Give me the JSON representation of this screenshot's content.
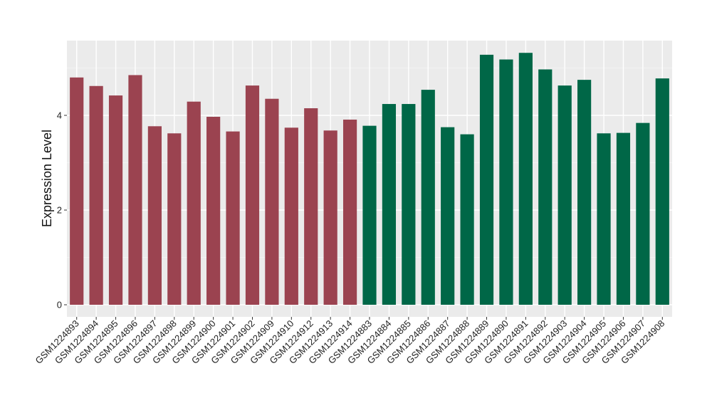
{
  "chart_data": {
    "type": "bar",
    "title": "",
    "xlabel": "",
    "ylabel": "Expression Level",
    "ylim": [
      0,
      5.6
    ],
    "yticks": [
      0,
      2,
      4
    ],
    "grid": true,
    "legend": "none",
    "colors": {
      "group_a": "#9b4350",
      "group_b": "#006747",
      "panel_background": "#ebebeb",
      "grid_major": "#ffffff",
      "grid_minor": "#f5f5f5"
    },
    "categories": [
      "GSM1224893",
      "GSM1224894",
      "GSM1224895",
      "GSM1224896",
      "GSM1224897",
      "GSM1224898",
      "GSM1224899",
      "GSM1224900",
      "GSM1224901",
      "GSM1224902",
      "GSM1224909",
      "GSM1224910",
      "GSM1224912",
      "GSM1224913",
      "GSM1224914",
      "GSM1224883",
      "GSM1224884",
      "GSM1224885",
      "GSM1224886",
      "GSM1224887",
      "GSM1224888",
      "GSM1224889",
      "GSM1224890",
      "GSM1224891",
      "GSM1224892",
      "GSM1224903",
      "GSM1224904",
      "GSM1224905",
      "GSM1224906",
      "GSM1224907",
      "GSM1224908"
    ],
    "values": [
      4.8,
      4.62,
      4.42,
      4.85,
      3.77,
      3.62,
      4.29,
      3.97,
      3.66,
      4.63,
      4.35,
      3.74,
      4.15,
      3.68,
      3.91,
      3.78,
      4.24,
      4.24,
      4.54,
      3.75,
      3.6,
      5.28,
      5.18,
      5.32,
      4.97,
      4.63,
      4.75,
      3.62,
      3.63,
      3.84,
      4.78
    ],
    "groups": [
      "a",
      "a",
      "a",
      "a",
      "a",
      "a",
      "a",
      "a",
      "a",
      "a",
      "a",
      "a",
      "a",
      "a",
      "a",
      "b",
      "b",
      "b",
      "b",
      "b",
      "b",
      "b",
      "b",
      "b",
      "b",
      "b",
      "b",
      "b",
      "b",
      "b",
      "b"
    ]
  }
}
